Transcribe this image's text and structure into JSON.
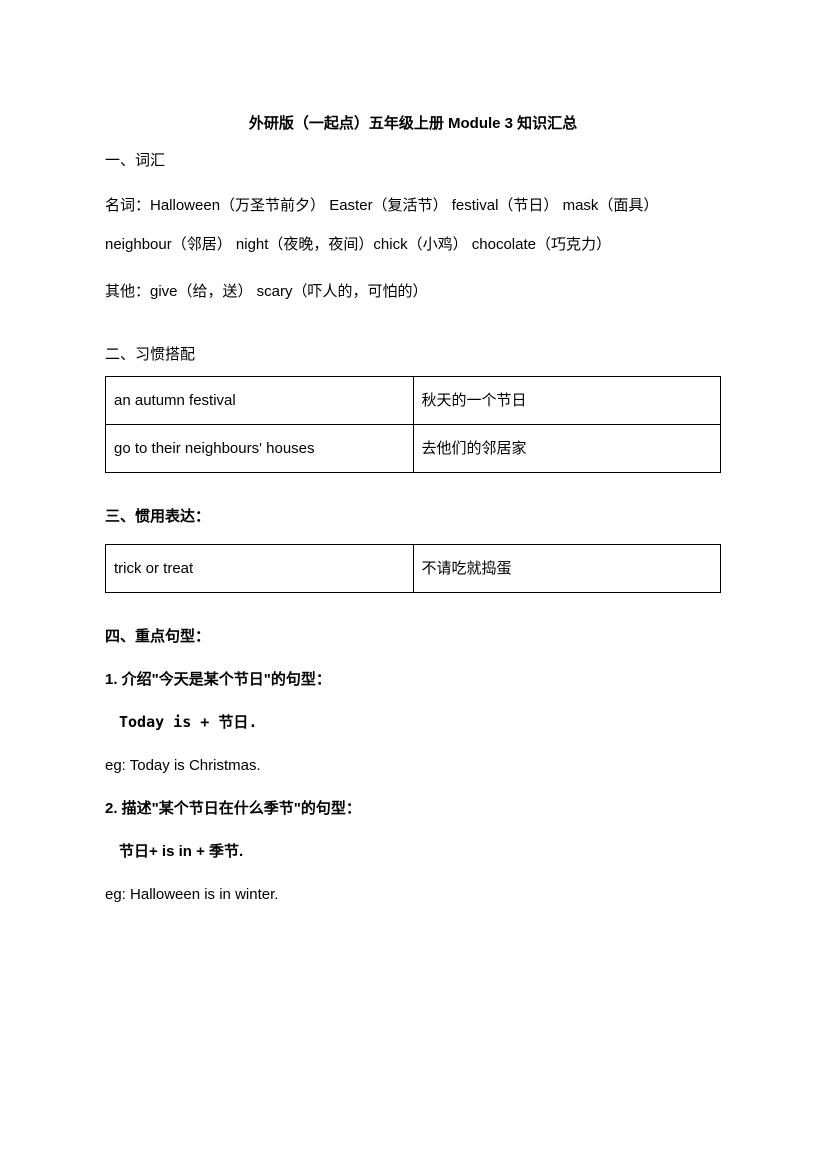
{
  "title": "外研版（一起点）五年级上册 Module 3 知识汇总",
  "section1": {
    "heading": "一、词汇",
    "nouns": "名词：Halloween（万圣节前夕）  Easter（复活节）  festival（节日）  mask（面具）  neighbour（邻居）  night（夜晚，夜间）chick（小鸡）  chocolate（巧克力）",
    "others": "其他：give（给，送）  scary（吓人的，可怕的）"
  },
  "section2": {
    "heading": "二、习惯搭配",
    "rows": [
      [
        "an autumn festival",
        "秋天的一个节日"
      ],
      [
        "go to their neighbours'  houses",
        "去他们的邻居家"
      ]
    ]
  },
  "section3": {
    "heading": "三、惯用表达：",
    "rows": [
      [
        "trick or treat",
        "不请吃就捣蛋"
      ]
    ]
  },
  "section4": {
    "heading": "四、重点句型：",
    "item1": {
      "sub": "1. 介绍\"今天是某个节日\"的句型：",
      "pattern": "Today is  +  节日.",
      "example": "eg: Today is  Christmas."
    },
    "item2": {
      "sub": "2. 描述\"某个节日在什么季节\"的句型：",
      "pattern": "节日+ is in + 季节.",
      "example": "eg: Halloween is in winter."
    }
  }
}
